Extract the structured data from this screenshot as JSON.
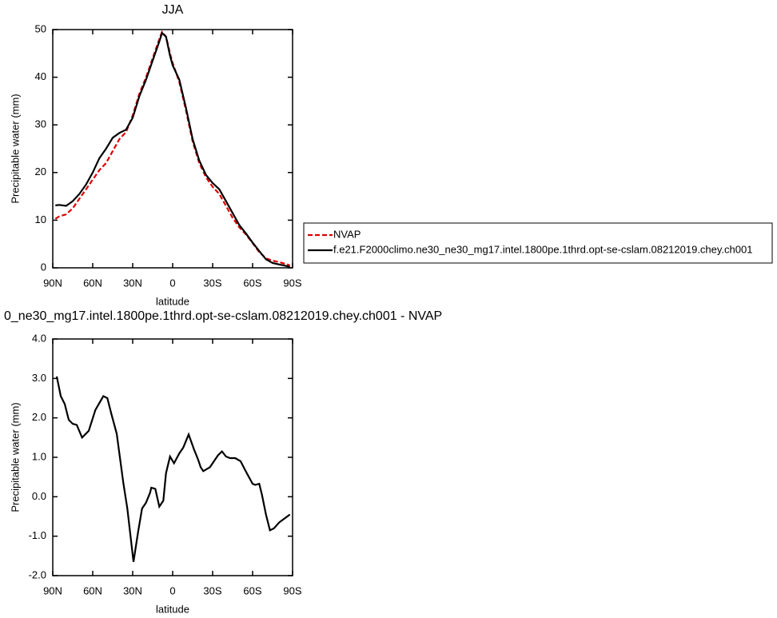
{
  "chart_data": [
    {
      "type": "line",
      "title": "JJA",
      "x_label": "latitude",
      "y_label": "Precipitable water (mm)",
      "x": [
        88,
        85,
        80,
        75,
        70,
        65,
        60,
        55,
        50,
        45,
        40,
        35,
        30,
        25,
        20,
        15,
        10,
        8,
        5,
        2,
        0,
        -5,
        -10,
        -15,
        -20,
        -25,
        -30,
        -35,
        -40,
        -45,
        -50,
        -55,
        -60,
        -65,
        -70,
        -75,
        -80,
        -85,
        -88
      ],
      "xlim": [
        90,
        -90
      ],
      "xticks": [
        {
          "value": 90,
          "label": "90N"
        },
        {
          "value": 60,
          "label": "60N"
        },
        {
          "value": 30,
          "label": "30N"
        },
        0,
        {
          "value": -30,
          "label": "30S"
        },
        {
          "value": -60,
          "label": "60S"
        },
        {
          "value": -90,
          "label": "90S"
        }
      ],
      "ylim": [
        0,
        50
      ],
      "yticks": [
        0,
        10,
        20,
        30,
        40,
        50
      ],
      "legend": "right",
      "series": [
        {
          "name": "NVAP",
          "color": "#e00000",
          "style": "dashed",
          "values": [
            10.3,
            10.8,
            11.2,
            12.5,
            14.5,
            16.5,
            18.5,
            20.5,
            22,
            24.5,
            27,
            28.5,
            32,
            36.5,
            40,
            44,
            48,
            49.5,
            48.5,
            45,
            43,
            39,
            33,
            26.5,
            22,
            19,
            17,
            15.5,
            13,
            10.5,
            8.5,
            7,
            5.2,
            3.3,
            2.0,
            1.5,
            1.2,
            0.8,
            0.5
          ]
        },
        {
          "name": "f.e21.F2000climo.ne30_ne30_mg17.intel.1800pe.1thrd.opt-se-cslam.08212019.chey.ch001",
          "color": "#000000",
          "style": "solid",
          "values": [
            13.1,
            13.2,
            13.0,
            14.0,
            15.5,
            17.5,
            20,
            23,
            25,
            27.3,
            28.3,
            29,
            31.5,
            36,
            39.5,
            43.5,
            47.5,
            49.3,
            48.5,
            44.5,
            42.5,
            39.5,
            33.5,
            27,
            22.5,
            19.5,
            17.8,
            16.5,
            14,
            11.5,
            9,
            7.2,
            5.3,
            3.5,
            1.8,
            1.0,
            0.7,
            0.4,
            0.2
          ]
        }
      ]
    },
    {
      "type": "line",
      "title": "0_ne30_mg17.intel.1800pe.1thrd.opt-se-cslam.08212019.chey.ch001 - NVAP",
      "x_label": "latitude",
      "y_label": "Precipitable water (mm)",
      "x": [
        87,
        84,
        81,
        78,
        75,
        72,
        68,
        63,
        58,
        52,
        49,
        46,
        42,
        37,
        34,
        29.4,
        26,
        23,
        20,
        17,
        16,
        13,
        10,
        7,
        5,
        2,
        -1,
        -5,
        -8,
        -12,
        -16,
        -19,
        -21,
        -23,
        -28,
        -31,
        -34,
        -37,
        -40,
        -43,
        -47,
        -51,
        -54,
        -58,
        -60,
        -62,
        -65,
        -67,
        -70,
        -73,
        -76,
        -80,
        -84,
        -88
      ],
      "xlim": [
        90,
        -90
      ],
      "xticks": [
        {
          "value": 90,
          "label": "90N"
        },
        {
          "value": 60,
          "label": "60N"
        },
        {
          "value": 30,
          "label": "30N"
        },
        0,
        {
          "value": -30,
          "label": "30S"
        },
        {
          "value": -60,
          "label": "60S"
        },
        {
          "value": -90,
          "label": "90S"
        }
      ],
      "ylim": [
        -2,
        4
      ],
      "yticks": [
        {
          "value": -2,
          "label": "-2.0"
        },
        {
          "value": -1,
          "label": "-1.0"
        },
        {
          "value": 0,
          "label": "0.0"
        },
        {
          "value": 1,
          "label": "1.0"
        },
        {
          "value": 2,
          "label": "2.0"
        },
        {
          "value": 3,
          "label": "3.0"
        },
        {
          "value": 4,
          "label": "4.0"
        }
      ],
      "series": [
        {
          "color": "#000000",
          "style": "solid",
          "values": [
            3.05,
            2.55,
            2.35,
            1.95,
            1.85,
            1.82,
            1.5,
            1.67,
            2.2,
            2.55,
            2.5,
            2.1,
            1.6,
            0.35,
            -0.3,
            -1.65,
            -0.9,
            -0.3,
            -0.15,
            0.1,
            0.23,
            0.2,
            -0.25,
            -0.1,
            0.6,
            1.02,
            0.85,
            1.1,
            1.25,
            1.58,
            1.2,
            0.95,
            0.75,
            0.65,
            0.75,
            0.9,
            1.05,
            1.15,
            1.02,
            0.98,
            0.98,
            0.9,
            0.7,
            0.45,
            0.33,
            0.3,
            0.33,
            0.05,
            -0.45,
            -0.85,
            -0.8,
            -0.65,
            -0.55,
            -0.45
          ]
        }
      ]
    }
  ]
}
